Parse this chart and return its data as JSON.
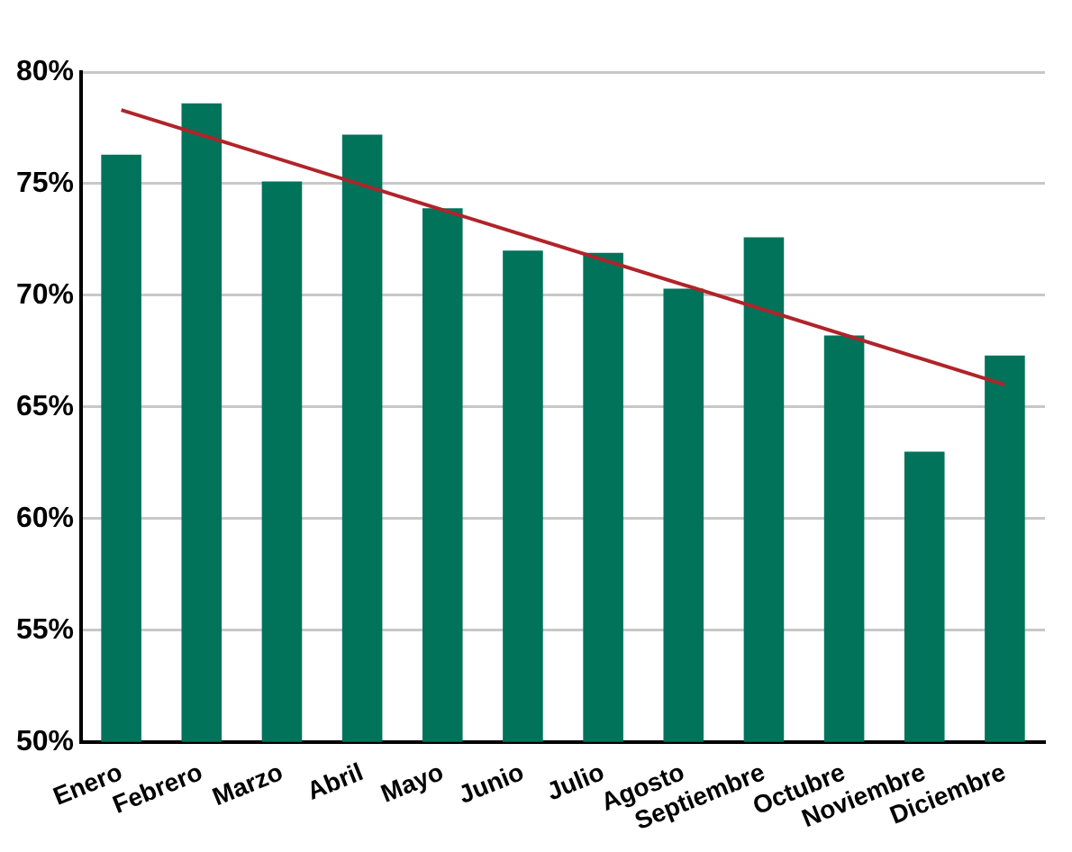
{
  "chart_data": {
    "type": "bar",
    "categories": [
      "Enero",
      "Febrero",
      "Marzo",
      "Abril",
      "Mayo",
      "Junio",
      "Julio",
      "Agosto",
      "Septiembre",
      "Octubre",
      "Noviembre",
      "Diciembre"
    ],
    "series": [
      {
        "color": "#00735a",
        "values": [
          76.3,
          78.6,
          75.1,
          77.2,
          73.9,
          72.0,
          71.9,
          70.3,
          72.6,
          68.2,
          63.0,
          67.3
        ]
      },
      {
        "type": "line",
        "color": "#b0242a",
        "x": [
          "Enero",
          "Diciembre"
        ],
        "values": [
          78.3,
          66.0
        ]
      }
    ],
    "ylim": [
      50,
      80
    ],
    "yticks": [
      {
        "value": 50,
        "label": "50%"
      },
      {
        "value": 55,
        "label": "55%"
      },
      {
        "value": 60,
        "label": "60%"
      },
      {
        "value": 65,
        "label": "65%"
      },
      {
        "value": 70,
        "label": "70%"
      },
      {
        "value": 75,
        "label": "75%"
      },
      {
        "value": 80,
        "label": "80%"
      }
    ],
    "grid": "y",
    "legend": false
  }
}
